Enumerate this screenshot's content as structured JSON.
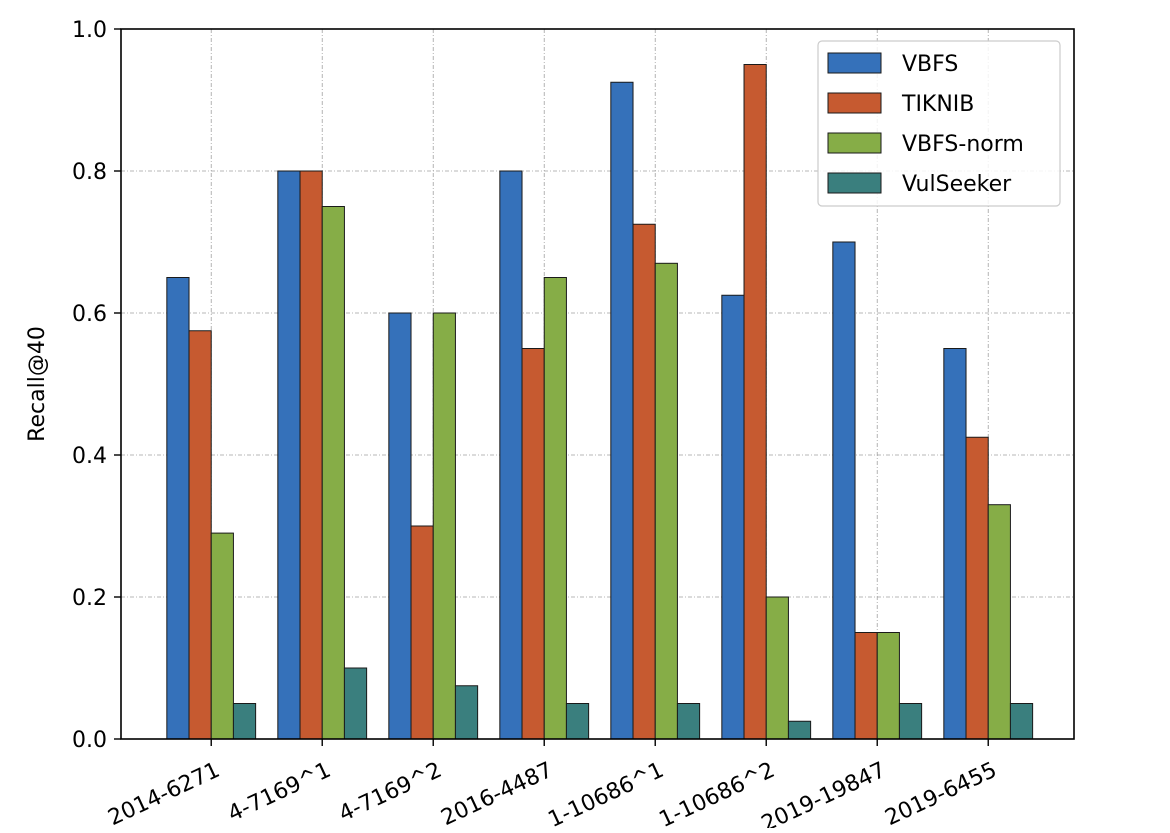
{
  "chart_data": {
    "type": "bar",
    "title": "",
    "xlabel": "",
    "ylabel": "Recall@40",
    "ylim": [
      0,
      1.0
    ],
    "yticks": [
      "0.0",
      "0.2",
      "0.4",
      "0.6",
      "0.8",
      "1.0"
    ],
    "grid": true,
    "legend_position": "top-right",
    "categories": [
      "2014-6271",
      "4-7169^1",
      "4-7169^2",
      "2016-4487",
      "1-10686^1",
      "1-10686^2",
      "2019-19847",
      "2019-6455"
    ],
    "series": [
      {
        "name": "VBFS",
        "color": "#3571ba",
        "values": [
          0.65,
          0.8,
          0.6,
          0.8,
          0.925,
          0.625,
          0.7,
          0.55
        ]
      },
      {
        "name": "TIKNIB",
        "color": "#c65a30",
        "values": [
          0.575,
          0.8,
          0.3,
          0.55,
          0.725,
          0.95,
          0.15,
          0.425
        ]
      },
      {
        "name": "VBFS-norm",
        "color": "#86ad47",
        "values": [
          0.29,
          0.75,
          0.6,
          0.65,
          0.67,
          0.2,
          0.15,
          0.33
        ]
      },
      {
        "name": "VulSeeker",
        "color": "#3a7f7e",
        "values": [
          0.05,
          0.1,
          0.075,
          0.05,
          0.05,
          0.025,
          0.05,
          0.05
        ]
      }
    ]
  }
}
